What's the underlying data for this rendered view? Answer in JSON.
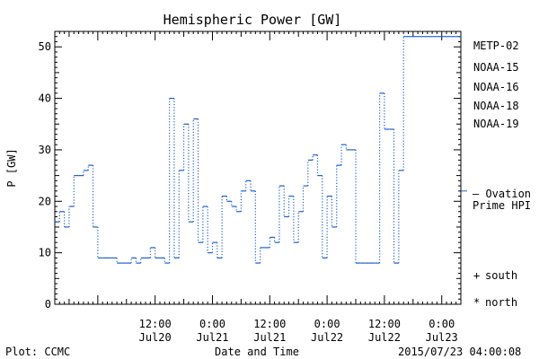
{
  "chart_data": {
    "type": "line",
    "title": "Hemispheric Power [GW]",
    "xlabel": "Date and Time",
    "ylabel": "P [GW]",
    "ylim": [
      0,
      53
    ],
    "xlim": [
      "2015-07-19T15:00",
      "2015-07-23T04:00"
    ],
    "yticks": [
      0,
      10,
      20,
      30,
      40,
      50
    ],
    "yticks_labels": [
      "0",
      "10",
      "20",
      "30",
      "40",
      "50"
    ],
    "xticks": [
      {
        "at": "2015-07-20T12:00",
        "time": "12:00",
        "date": "Jul20"
      },
      {
        "at": "2015-07-21T00:00",
        "time": "0:00",
        "date": "Jul21"
      },
      {
        "at": "2015-07-21T12:00",
        "time": "12:00",
        "date": "Jul21"
      },
      {
        "at": "2015-07-22T00:00",
        "time": "0:00",
        "date": "Jul22"
      },
      {
        "at": "2015-07-22T12:00",
        "time": "12:00",
        "date": "Jul22"
      },
      {
        "at": "2015-07-23T00:00",
        "time": "0:00",
        "date": "Jul23"
      }
    ],
    "grid": false,
    "legend_position": "right",
    "legend": [
      {
        "name": "METP-02",
        "color": "#000000"
      },
      {
        "name": "NOAA-15",
        "color": "#1f3fd0"
      },
      {
        "name": "NOAA-16",
        "color": "#1cc8d8"
      },
      {
        "name": "NOAA-18",
        "color": "#2ecc55"
      },
      {
        "name": "NOAA-19",
        "color": "#e8900a"
      }
    ],
    "ovation": {
      "label_line1": "— Ovation",
      "label_line2": "Prime HPI",
      "value": 22,
      "color": "#1f5fd0"
    },
    "markers": [
      {
        "symbol": "+",
        "label": "south"
      },
      {
        "symbol": "*",
        "label": "north"
      }
    ],
    "series": [
      {
        "color": "#1f5fd0",
        "x": [
          "2015-07-19T15:00",
          "2015-07-19T16:00",
          "2015-07-19T17:00",
          "2015-07-19T18:00",
          "2015-07-19T19:00",
          "2015-07-19T20:00",
          "2015-07-19T21:00",
          "2015-07-19T22:00",
          "2015-07-19T23:00",
          "2015-07-20T00:00",
          "2015-07-20T01:00",
          "2015-07-20T02:00",
          "2015-07-20T03:00",
          "2015-07-20T04:00",
          "2015-07-20T05:00",
          "2015-07-20T06:00",
          "2015-07-20T07:00",
          "2015-07-20T08:00",
          "2015-07-20T09:00",
          "2015-07-20T10:00",
          "2015-07-20T11:00",
          "2015-07-20T12:00",
          "2015-07-20T13:00",
          "2015-07-20T14:00",
          "2015-07-20T15:00",
          "2015-07-20T16:00",
          "2015-07-20T17:00",
          "2015-07-20T18:00",
          "2015-07-20T19:00",
          "2015-07-20T20:00",
          "2015-07-20T21:00",
          "2015-07-20T22:00",
          "2015-07-20T23:00",
          "2015-07-21T00:00",
          "2015-07-21T01:00",
          "2015-07-21T02:00",
          "2015-07-21T03:00",
          "2015-07-21T04:00",
          "2015-07-21T05:00",
          "2015-07-21T06:00",
          "2015-07-21T07:00",
          "2015-07-21T08:00",
          "2015-07-21T09:00",
          "2015-07-21T10:00",
          "2015-07-21T11:00",
          "2015-07-21T12:00",
          "2015-07-21T13:00",
          "2015-07-21T14:00",
          "2015-07-21T15:00",
          "2015-07-21T16:00",
          "2015-07-21T17:00",
          "2015-07-21T18:00",
          "2015-07-21T19:00",
          "2015-07-21T20:00",
          "2015-07-21T21:00",
          "2015-07-21T22:00",
          "2015-07-21T23:00",
          "2015-07-22T00:00",
          "2015-07-22T01:00",
          "2015-07-22T02:00",
          "2015-07-22T03:00",
          "2015-07-22T04:00",
          "2015-07-22T05:00",
          "2015-07-22T06:00",
          "2015-07-22T07:00",
          "2015-07-22T08:00",
          "2015-07-22T09:00",
          "2015-07-22T10:00",
          "2015-07-22T11:00",
          "2015-07-22T12:00",
          "2015-07-22T13:00",
          "2015-07-22T14:00",
          "2015-07-22T15:00",
          "2015-07-22T16:00",
          "2015-07-22T17:00",
          "2015-07-22T18:00",
          "2015-07-22T19:00",
          "2015-07-22T20:00",
          "2015-07-22T21:00",
          "2015-07-22T22:00",
          "2015-07-22T23:00",
          "2015-07-23T00:00",
          "2015-07-23T01:00",
          "2015-07-23T02:00",
          "2015-07-23T03:00",
          "2015-07-23T04:00"
        ],
        "y": [
          16,
          18,
          15,
          19,
          25,
          25,
          26,
          27,
          15,
          9,
          9,
          9,
          9,
          8,
          8,
          8,
          9,
          8,
          9,
          9,
          11,
          9,
          9,
          8,
          40,
          9,
          26,
          35,
          16,
          36,
          12,
          19,
          10,
          12,
          9,
          21,
          20,
          19,
          18,
          22,
          24,
          22,
          8,
          11,
          11,
          13,
          12,
          23,
          17,
          21,
          12,
          18,
          23,
          28,
          29,
          25,
          9,
          21,
          15,
          27,
          31,
          30,
          30,
          8,
          8,
          8,
          8,
          8,
          41,
          34,
          34,
          8,
          26,
          52,
          52,
          52,
          52,
          52,
          52,
          52,
          52,
          52,
          52,
          52,
          52,
          52
        ]
      }
    ]
  },
  "footer": {
    "plot_credit": "Plot: CCMC",
    "timestamp": "2015/07/23 04:00:08"
  }
}
